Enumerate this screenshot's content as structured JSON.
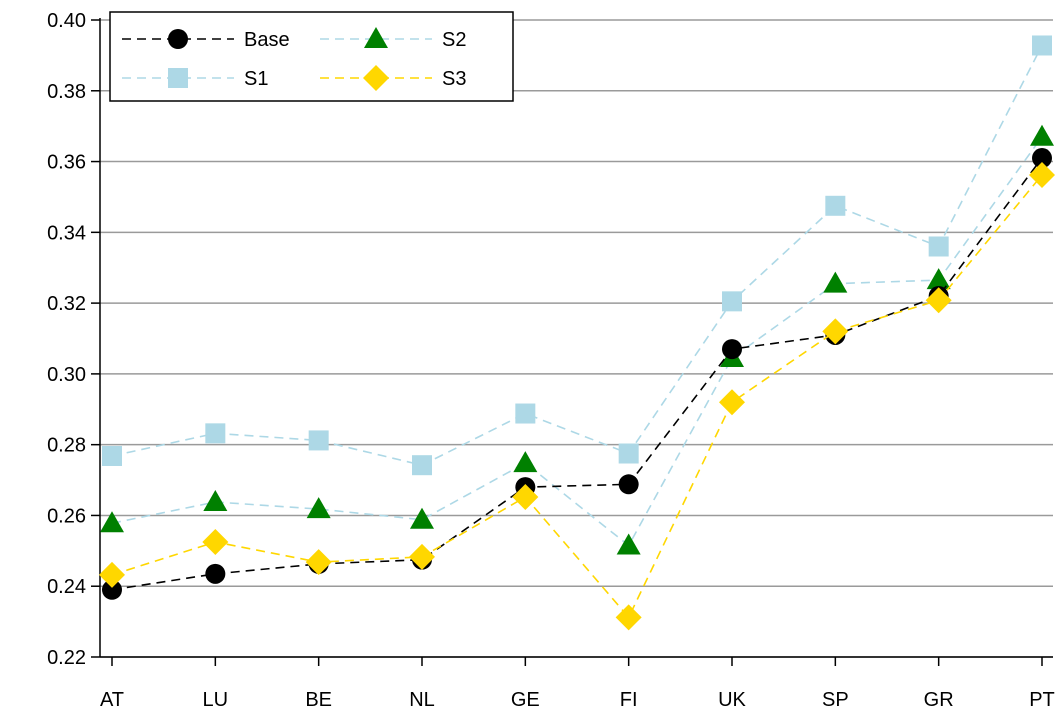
{
  "chart_data": {
    "type": "line",
    "title": "",
    "xlabel": "",
    "ylabel": "",
    "categories": [
      "AT",
      "LU",
      "BE",
      "NL",
      "GE",
      "FI",
      "UK",
      "SP",
      "GR",
      "PT"
    ],
    "ylim": [
      0.22,
      0.4
    ],
    "yticks": [
      0.22,
      0.24,
      0.26,
      0.28,
      0.3,
      0.32,
      0.34,
      0.36,
      0.38,
      0.4
    ],
    "ytick_labels": [
      "0.22",
      "0.24",
      "0.26",
      "0.28",
      "0.30",
      "0.32",
      "0.34",
      "0.36",
      "0.38",
      "0.40"
    ],
    "grid": true,
    "legend_position": "top-left",
    "series": [
      {
        "name": "Base",
        "marker": "circle",
        "color": "#000000",
        "values": [
          0.239,
          0.2435,
          0.2463,
          0.2475,
          0.268,
          0.2688,
          0.307,
          0.311,
          0.322,
          0.361
        ]
      },
      {
        "name": "S1",
        "marker": "square",
        "color": "#ADD8E6",
        "values": [
          0.2768,
          0.2832,
          0.2812,
          0.2742,
          0.2888,
          0.2775,
          0.3205,
          0.3475,
          0.336,
          0.3928
        ]
      },
      {
        "name": "S2",
        "marker": "triangle",
        "color": "#008000",
        "line_color": "#ADD8E6",
        "values": [
          0.2578,
          0.2638,
          0.2618,
          0.2588,
          0.2748,
          0.2515,
          0.3045,
          0.3255,
          0.3265,
          0.367
        ]
      },
      {
        "name": "S3",
        "marker": "diamond",
        "color": "#FFD700",
        "values": [
          0.2432,
          0.2525,
          0.2468,
          0.2483,
          0.2652,
          0.2312,
          0.292,
          0.312,
          0.3208,
          0.3562
        ]
      }
    ],
    "legend": [
      {
        "name": "Base",
        "column": 0,
        "row": 0
      },
      {
        "name": "S2",
        "column": 1,
        "row": 0
      },
      {
        "name": "S1",
        "column": 0,
        "row": 1
      },
      {
        "name": "S3",
        "column": 1,
        "row": 1
      }
    ]
  }
}
